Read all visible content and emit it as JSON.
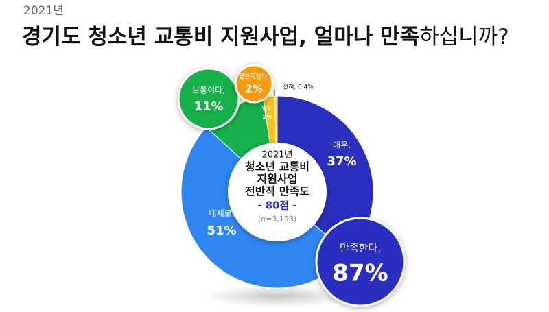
{
  "chart_data": {
    "type": "pie",
    "subtitle": "2021년",
    "title": [
      "경기도 청소년 교통비 지원사업, 얼마나 만족",
      "하십니까?"
    ],
    "center_text": [
      "2021년",
      "청소년 교통비",
      "지원사업",
      "전반적 만족도"
    ],
    "center_score": "- 80점 -",
    "center_note": "(n=3,198)",
    "categories": [
      "매우,",
      "대체로,",
      "보통이다,",
      "별로,",
      "전혀,"
    ],
    "values": [
      37,
      51,
      11,
      2,
      0.4
    ],
    "value_labels": [
      "37%",
      "51%",
      "11%",
      "2%",
      "0.4%"
    ],
    "colors": [
      "#2a2fc0",
      "#2f86f0",
      "#16b04c",
      "#f5c21a",
      "#f7d75c"
    ],
    "summary": [
      {
        "label": "만족한다,",
        "value": 87,
        "value_label": "87%",
        "color": "#2a2fc0"
      },
      {
        "label": "불만족한다,",
        "value": 2,
        "value_label": "2%",
        "color": "#f59a0c"
      }
    ]
  }
}
